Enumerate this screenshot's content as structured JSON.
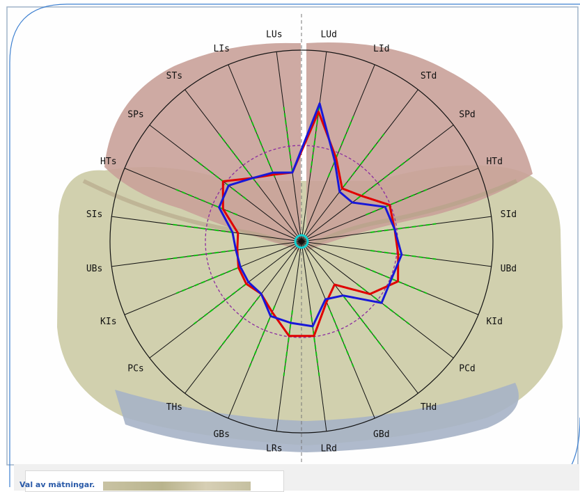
{
  "radar": {
    "labels": [
      "LUd",
      "LId",
      "STd",
      "SPd",
      "HTd",
      "SId",
      "UBd",
      "KId",
      "PCd",
      "THd",
      "GBd",
      "LRd",
      "LRs",
      "GBs",
      "THs",
      "PCs",
      "KIs",
      "UBs",
      "SIs",
      "HTs",
      "SPs",
      "STs",
      "LIs",
      "LUs"
    ],
    "red_series_radii": [
      188,
      130,
      96,
      108,
      137,
      135,
      140,
      150,
      124,
      78,
      94,
      137,
      137,
      110,
      95,
      100,
      98,
      93,
      92,
      122,
      142,
      115,
      104,
      100
    ],
    "blue_series_radii": [
      200,
      125,
      90,
      92,
      130,
      135,
      145,
      140,
      145,
      98,
      90,
      123,
      118,
      116,
      95,
      96,
      95,
      95,
      100,
      128,
      132,
      115,
      107,
      100
    ],
    "reference_radius": 138,
    "colors": {
      "red": "#e00000",
      "blue": "#1818d8",
      "reference": "#8a2aa0",
      "green": "#10c010",
      "center": "#10d0d0"
    }
  },
  "bottom_panel": {
    "selection_label": "Val av mätningar."
  }
}
